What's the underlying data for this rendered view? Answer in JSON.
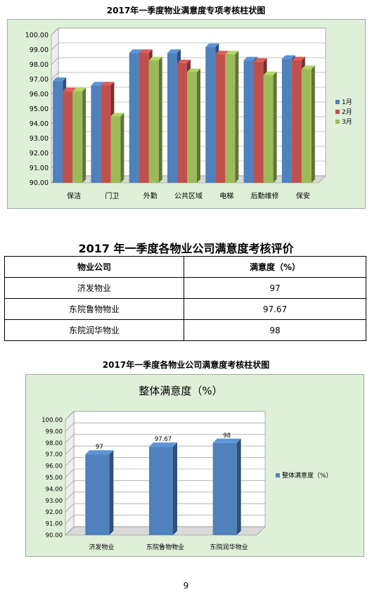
{
  "chart1": {
    "caption": "2017年一季度物业满意度专项考核柱状图",
    "chart_data": {
      "type": "bar",
      "categories": [
        "保洁",
        "门卫",
        "外勤",
        "公共区域",
        "电梯",
        "后勤维修",
        "保安"
      ],
      "series": [
        {
          "name": "1月",
          "color": "#4f81bd",
          "values": [
            96.9,
            96.6,
            98.8,
            98.8,
            99.2,
            98.3,
            98.4
          ]
        },
        {
          "name": "2月",
          "color": "#c0504d",
          "values": [
            96.2,
            96.6,
            98.8,
            98.1,
            98.7,
            98.2,
            98.3
          ]
        },
        {
          "name": "3月",
          "color": "#9bbb59",
          "values": [
            96.2,
            94.5,
            98.3,
            97.5,
            98.7,
            97.3,
            97.7
          ]
        }
      ],
      "ylim": [
        90,
        100
      ],
      "yticks": [
        "90.00",
        "91.00",
        "92.00",
        "93.00",
        "94.00",
        "95.00",
        "96.00",
        "97.00",
        "98.00",
        "99.00",
        "100.00"
      ],
      "grid": true,
      "legend": "right"
    }
  },
  "table": {
    "title": "2017 年一季度各物业公司满意度考核评价",
    "headers": [
      "物业公司",
      "满意度（%）"
    ],
    "rows": [
      [
        "济发物业",
        "97"
      ],
      [
        "东院鲁物物业",
        "97.67"
      ],
      [
        "东院润华物业",
        "98"
      ]
    ]
  },
  "chart2": {
    "caption": "2017年一季度各物业公司满意度考核柱状图",
    "chart_data": {
      "type": "bar",
      "title": "整体满意度（%）",
      "categories": [
        "济发物业",
        "东院鲁物物业",
        "东院润华物业"
      ],
      "series": [
        {
          "name": "整体满意度（%）",
          "color": "#4f81bd",
          "values": [
            97,
            97.67,
            98
          ]
        }
      ],
      "data_labels": [
        "97",
        "97.67",
        "98"
      ],
      "ylim": [
        90,
        100
      ],
      "yticks": [
        "90.00",
        "91.00",
        "92.00",
        "93.00",
        "94.00",
        "95.00",
        "96.00",
        "97.00",
        "98.00",
        "99.00",
        "100.00"
      ],
      "grid": true,
      "legend": "right"
    }
  },
  "page": {
    "number": "9"
  }
}
